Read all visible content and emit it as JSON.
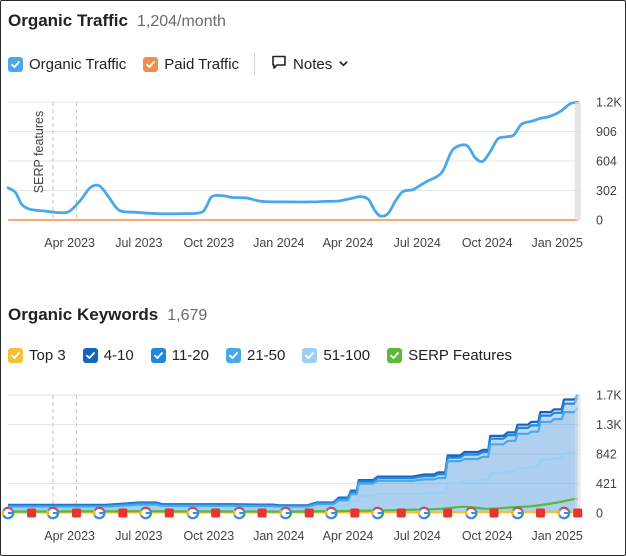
{
  "colors": {
    "organic": "#4aa8ea",
    "paid": "#f28c4f",
    "top3": "#f7c034",
    "k4_10": "#1664c0",
    "k11_20": "#2186dc",
    "k21_50": "#4aa8ea",
    "k51_100": "#9ccff4",
    "serp": "#5cb83a",
    "grid": "#e4e4e4",
    "annot_line": "#c4c4c4",
    "marker_flag": "#e8332e"
  },
  "traffic": {
    "title": "Organic Traffic",
    "value": "1,204/month",
    "legend": [
      {
        "label": "Organic Traffic",
        "color": "#4aa8ea"
      },
      {
        "label": "Paid Traffic",
        "color": "#f28c4f"
      }
    ],
    "notes_label": "Notes",
    "annotation": "SERP features"
  },
  "keywords": {
    "title": "Organic Keywords",
    "value": "1,679",
    "legend": [
      {
        "label": "Top 3",
        "color": "#f7c034"
      },
      {
        "label": "4-10",
        "color": "#1664c0"
      },
      {
        "label": "11-20",
        "color": "#2186dc"
      },
      {
        "label": "21-50",
        "color": "#4aa8ea"
      },
      {
        "label": "51-100",
        "color": "#9ccff4"
      },
      {
        "label": "SERP Features",
        "color": "#5cb83a"
      }
    ]
  },
  "chart_data": [
    {
      "type": "line",
      "title": "Organic Traffic",
      "x_axis_type": "date",
      "xlim": [
        "2023-01-10",
        "2025-01-31"
      ],
      "x_ticks": [
        {
          "date": "2023-04-01",
          "label": "Apr 2023"
        },
        {
          "date": "2023-07-01",
          "label": "Jul 2023"
        },
        {
          "date": "2023-10-01",
          "label": "Oct 2023"
        },
        {
          "date": "2024-01-01",
          "label": "Jan 2024"
        },
        {
          "date": "2024-04-01",
          "label": "Apr 2024"
        },
        {
          "date": "2024-07-01",
          "label": "Jul 2024"
        },
        {
          "date": "2024-10-01",
          "label": "Oct 2024"
        },
        {
          "date": "2025-01-01",
          "label": "Jan 2025"
        }
      ],
      "y_ticks": [
        {
          "value": 0,
          "label": "0"
        },
        {
          "value": 302,
          "label": "302"
        },
        {
          "value": 604,
          "label": "604"
        },
        {
          "value": 906,
          "label": "906"
        },
        {
          "value": 1208,
          "label": "1.2K"
        }
      ],
      "ylim": [
        0,
        1208
      ],
      "grid": true,
      "annotation_lines": [
        "2023-03-10",
        "2023-04-10"
      ],
      "series": [
        {
          "name": "Organic Traffic",
          "color": "#4aa8ea",
          "points": [
            [
              "2023-01-10",
              330
            ],
            [
              "2023-01-20",
              280
            ],
            [
              "2023-01-28",
              160
            ],
            [
              "2023-02-08",
              110
            ],
            [
              "2023-03-01",
              90
            ],
            [
              "2023-03-20",
              75
            ],
            [
              "2023-04-01",
              90
            ],
            [
              "2023-04-15",
              200
            ],
            [
              "2023-04-28",
              330
            ],
            [
              "2023-05-10",
              350
            ],
            [
              "2023-05-22",
              240
            ],
            [
              "2023-06-05",
              100
            ],
            [
              "2023-06-25",
              80
            ],
            [
              "2023-07-25",
              65
            ],
            [
              "2023-08-25",
              65
            ],
            [
              "2023-09-20",
              75
            ],
            [
              "2023-09-28",
              140
            ],
            [
              "2023-10-05",
              240
            ],
            [
              "2023-10-18",
              250
            ],
            [
              "2023-11-01",
              230
            ],
            [
              "2023-11-20",
              225
            ],
            [
              "2023-12-10",
              190
            ],
            [
              "2024-01-15",
              185
            ],
            [
              "2024-02-15",
              185
            ],
            [
              "2024-03-01",
              190
            ],
            [
              "2024-03-20",
              195
            ],
            [
              "2024-04-05",
              220
            ],
            [
              "2024-04-18",
              240
            ],
            [
              "2024-04-28",
              210
            ],
            [
              "2024-05-06",
              100
            ],
            [
              "2024-05-14",
              40
            ],
            [
              "2024-05-24",
              70
            ],
            [
              "2024-06-02",
              190
            ],
            [
              "2024-06-12",
              290
            ],
            [
              "2024-06-25",
              310
            ],
            [
              "2024-07-05",
              355
            ],
            [
              "2024-07-15",
              400
            ],
            [
              "2024-07-28",
              450
            ],
            [
              "2024-08-05",
              520
            ],
            [
              "2024-08-15",
              700
            ],
            [
              "2024-08-25",
              760
            ],
            [
              "2024-09-05",
              760
            ],
            [
              "2024-09-15",
              640
            ],
            [
              "2024-09-25",
              600
            ],
            [
              "2024-10-05",
              700
            ],
            [
              "2024-10-15",
              830
            ],
            [
              "2024-10-25",
              850
            ],
            [
              "2024-11-05",
              870
            ],
            [
              "2024-11-15",
              980
            ],
            [
              "2024-11-28",
              1010
            ],
            [
              "2024-12-10",
              1040
            ],
            [
              "2024-12-22",
              1060
            ],
            [
              "2025-01-05",
              1110
            ],
            [
              "2025-01-18",
              1190
            ],
            [
              "2025-01-28",
              1204
            ]
          ]
        },
        {
          "name": "Paid Traffic",
          "color": "#f28c4f",
          "points": [
            [
              "2023-01-10",
              0
            ],
            [
              "2025-01-28",
              0
            ]
          ]
        }
      ]
    },
    {
      "type": "area",
      "title": "Organic Keywords",
      "stacked": false,
      "x_axis_type": "date",
      "xlim": [
        "2023-01-10",
        "2025-01-31"
      ],
      "x_ticks": [
        {
          "date": "2023-04-01",
          "label": "Apr 2023"
        },
        {
          "date": "2023-07-01",
          "label": "Jul 2023"
        },
        {
          "date": "2023-10-01",
          "label": "Oct 2023"
        },
        {
          "date": "2024-01-01",
          "label": "Jan 2024"
        },
        {
          "date": "2024-04-01",
          "label": "Apr 2024"
        },
        {
          "date": "2024-07-01",
          "label": "Jul 2024"
        },
        {
          "date": "2024-10-01",
          "label": "Oct 2024"
        },
        {
          "date": "2025-01-01",
          "label": "Jan 2025"
        }
      ],
      "y_ticks": [
        {
          "value": 0,
          "label": "0"
        },
        {
          "value": 421,
          "label": "421"
        },
        {
          "value": 842,
          "label": "842"
        },
        {
          "value": 1263,
          "label": "1.3K"
        },
        {
          "value": 1684,
          "label": "1.7K"
        }
      ],
      "ylim": [
        0,
        1684
      ],
      "grid": true,
      "annotation_lines": [
        "2023-03-10",
        "2023-04-10"
      ],
      "marker_dates": [
        "2023-01-10",
        "2023-02-10",
        "2023-03-10",
        "2023-04-10",
        "2023-05-10",
        "2023-06-10",
        "2023-07-10",
        "2023-08-10",
        "2023-09-10",
        "2023-10-10",
        "2023-11-10",
        "2023-12-10",
        "2024-01-10",
        "2024-02-10",
        "2024-03-10",
        "2024-04-10",
        "2024-05-10",
        "2024-06-10",
        "2024-07-10",
        "2024-08-10",
        "2024-09-10",
        "2024-10-10",
        "2024-11-10",
        "2024-12-10",
        "2025-01-10",
        "2025-01-28"
      ],
      "series": [
        {
          "name": "4-10",
          "color": "#1664c0",
          "points": [
            [
              "2023-01-10",
              115
            ],
            [
              "2023-07-01",
              150
            ],
            [
              "2023-08-01",
              125
            ],
            [
              "2023-12-01",
              120
            ],
            [
              "2024-01-01",
              110
            ],
            [
              "2024-02-20",
              150
            ],
            [
              "2024-03-20",
              220
            ],
            [
              "2024-04-05",
              320
            ],
            [
              "2024-04-15",
              470
            ],
            [
              "2024-05-10",
              520
            ],
            [
              "2024-07-10",
              550
            ],
            [
              "2024-07-28",
              580
            ],
            [
              "2024-08-10",
              820
            ],
            [
              "2024-09-01",
              870
            ],
            [
              "2024-09-25",
              900
            ],
            [
              "2024-10-05",
              1100
            ],
            [
              "2024-10-28",
              1150
            ],
            [
              "2024-11-10",
              1260
            ],
            [
              "2024-11-28",
              1300
            ],
            [
              "2024-12-10",
              1440
            ],
            [
              "2024-12-28",
              1480
            ],
            [
              "2025-01-10",
              1620
            ],
            [
              "2025-01-28",
              1684
            ]
          ]
        },
        {
          "name": "11-20",
          "color": "#2186dc",
          "points": [
            [
              "2023-01-10",
              105
            ],
            [
              "2023-07-01",
              140
            ],
            [
              "2023-08-01",
              115
            ],
            [
              "2023-12-01",
              110
            ],
            [
              "2024-01-01",
              100
            ],
            [
              "2024-02-20",
              140
            ],
            [
              "2024-03-20",
              205
            ],
            [
              "2024-04-05",
              300
            ],
            [
              "2024-04-15",
              450
            ],
            [
              "2024-05-10",
              500
            ],
            [
              "2024-07-10",
              525
            ],
            [
              "2024-07-28",
              555
            ],
            [
              "2024-08-10",
              790
            ],
            [
              "2024-09-01",
              835
            ],
            [
              "2024-09-25",
              870
            ],
            [
              "2024-10-05",
              1060
            ],
            [
              "2024-10-28",
              1110
            ],
            [
              "2024-11-10",
              1215
            ],
            [
              "2024-11-28",
              1250
            ],
            [
              "2024-12-10",
              1390
            ],
            [
              "2024-12-28",
              1430
            ],
            [
              "2025-01-10",
              1560
            ],
            [
              "2025-01-28",
              1640
            ]
          ]
        },
        {
          "name": "21-50",
          "color": "#4aa8ea",
          "points": [
            [
              "2023-01-10",
              90
            ],
            [
              "2023-07-01",
              120
            ],
            [
              "2023-08-01",
              100
            ],
            [
              "2023-12-01",
              95
            ],
            [
              "2024-01-01",
              88
            ],
            [
              "2024-02-20",
              125
            ],
            [
              "2024-03-20",
              180
            ],
            [
              "2024-04-05",
              270
            ],
            [
              "2024-04-15",
              420
            ],
            [
              "2024-05-10",
              460
            ],
            [
              "2024-07-10",
              480
            ],
            [
              "2024-07-28",
              500
            ],
            [
              "2024-08-10",
              740
            ],
            [
              "2024-09-01",
              770
            ],
            [
              "2024-09-25",
              800
            ],
            [
              "2024-10-05",
              980
            ],
            [
              "2024-10-28",
              1030
            ],
            [
              "2024-11-10",
              1130
            ],
            [
              "2024-11-28",
              1160
            ],
            [
              "2024-12-10",
              1300
            ],
            [
              "2024-12-28",
              1340
            ],
            [
              "2025-01-10",
              1440
            ],
            [
              "2025-01-28",
              1500
            ]
          ]
        },
        {
          "name": "51-100",
          "color": "#9ccff4",
          "points": [
            [
              "2023-01-10",
              60
            ],
            [
              "2023-07-01",
              80
            ],
            [
              "2023-08-01",
              70
            ],
            [
              "2023-12-01",
              65
            ],
            [
              "2024-01-01",
              60
            ],
            [
              "2024-02-20",
              80
            ],
            [
              "2024-03-20",
              110
            ],
            [
              "2024-04-05",
              170
            ],
            [
              "2024-04-15",
              250
            ],
            [
              "2024-05-10",
              270
            ],
            [
              "2024-07-10",
              280
            ],
            [
              "2024-07-28",
              290
            ],
            [
              "2024-08-10",
              430
            ],
            [
              "2024-09-01",
              450
            ],
            [
              "2024-09-25",
              470
            ],
            [
              "2024-10-05",
              570
            ],
            [
              "2024-10-28",
              600
            ],
            [
              "2024-11-10",
              640
            ],
            [
              "2024-11-28",
              660
            ],
            [
              "2024-12-10",
              760
            ],
            [
              "2024-12-28",
              780
            ],
            [
              "2025-01-10",
              860
            ],
            [
              "2025-01-28",
              920
            ]
          ]
        },
        {
          "name": "Top 3",
          "color": "#f7c034",
          "points": [
            [
              "2023-01-10",
              8
            ],
            [
              "2024-06-01",
              10
            ],
            [
              "2025-01-28",
              20
            ]
          ]
        },
        {
          "name": "SERP Features",
          "color": "#5cb83a",
          "points": [
            [
              "2023-01-10",
              20
            ],
            [
              "2023-07-01",
              25
            ],
            [
              "2024-01-01",
              20
            ],
            [
              "2024-04-01",
              30
            ],
            [
              "2024-06-01",
              40
            ],
            [
              "2024-08-01",
              60
            ],
            [
              "2024-09-01",
              90
            ],
            [
              "2024-10-01",
              60
            ],
            [
              "2024-11-01",
              80
            ],
            [
              "2024-12-01",
              100
            ],
            [
              "2025-01-01",
              150
            ],
            [
              "2025-01-28",
              210
            ]
          ]
        }
      ]
    }
  ]
}
